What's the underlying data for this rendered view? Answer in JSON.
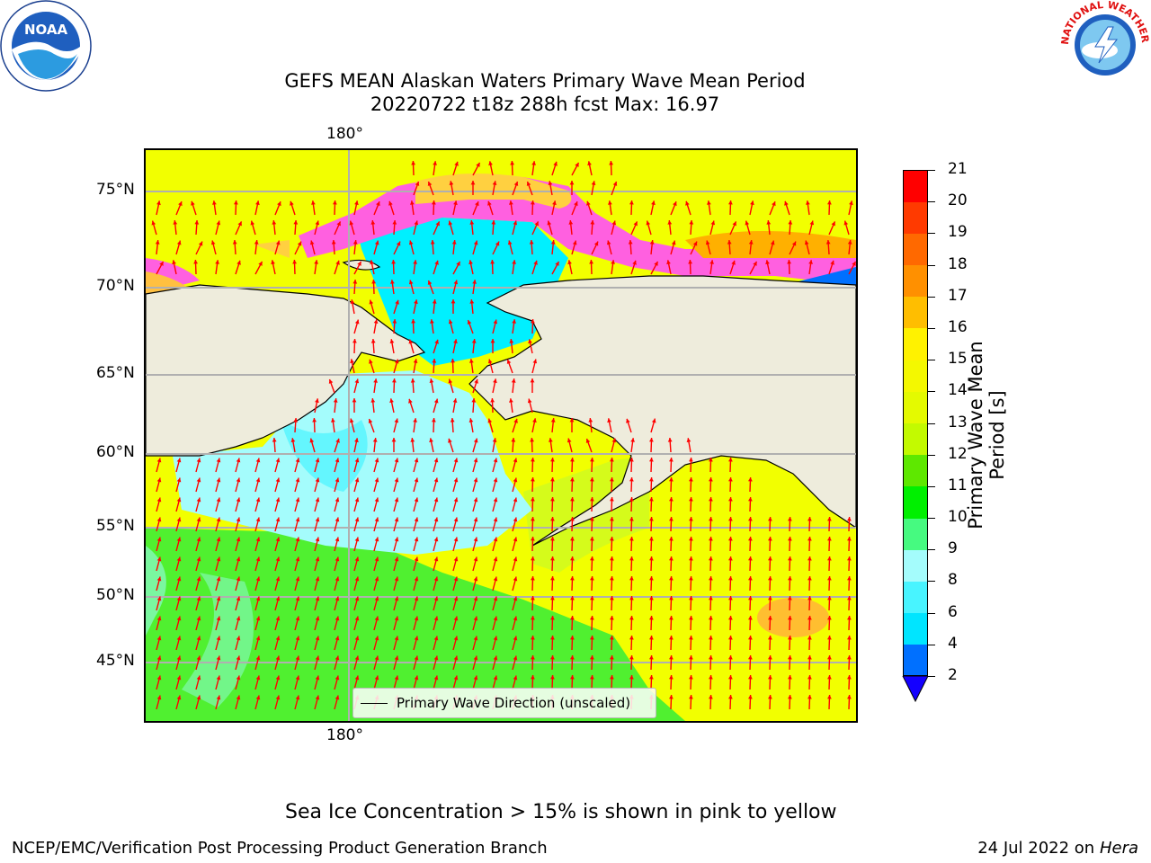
{
  "title": {
    "line1": "GEFS MEAN Alaskan Waters Primary Wave Mean Period",
    "line2": "20220722 t18z 288h fcst   Max: 16.97"
  },
  "logos": {
    "noaa_text": "NOAA",
    "noaa_ring": "NATIONAL OCEANIC AND ATMOSPHERIC ADMINISTRATION · U.S. DEPARTMENT OF COMMERCE",
    "nws_ring": "NATIONAL WEATHER SERVICE"
  },
  "map": {
    "lon_label_top": "180°",
    "lon_label_bottom": "180°",
    "lat_labels": [
      "75°N",
      "70°N",
      "65°N",
      "60°N",
      "55°N",
      "50°N",
      "45°N"
    ],
    "legend_label": "Primary Wave Direction (unscaled)",
    "colors": {
      "land": "#eeecdc",
      "arrow": "#ff0000",
      "grid": "#b0b0b0",
      "coast": "#000000"
    }
  },
  "colorbar": {
    "label": "Primary Wave Mean Period [s]",
    "levels": [
      "2",
      "4",
      "6",
      "8",
      "9",
      "10",
      "11",
      "12",
      "13",
      "14",
      "15",
      "16",
      "17",
      "18",
      "19",
      "20",
      "21"
    ],
    "colors": [
      "#0070ff",
      "#00e5ff",
      "#48f4ff",
      "#a4fcfc",
      "#46fa80",
      "#00f000",
      "#5ee800",
      "#c3fa00",
      "#e4fa00",
      "#f4f800",
      "#fff200",
      "#ffbe00",
      "#ff9000",
      "#ff6900",
      "#ff3a00",
      "#ff0000"
    ],
    "extend_color": "#1400ff"
  },
  "footnote": "Sea Ice Concentration > 15% is shown in pink to yellow",
  "footer": {
    "left": "NCEP/EMC/Verification Post Processing Product Generation Branch",
    "right_date": "24 Jul 2022 on",
    "right_host": "Hera"
  }
}
